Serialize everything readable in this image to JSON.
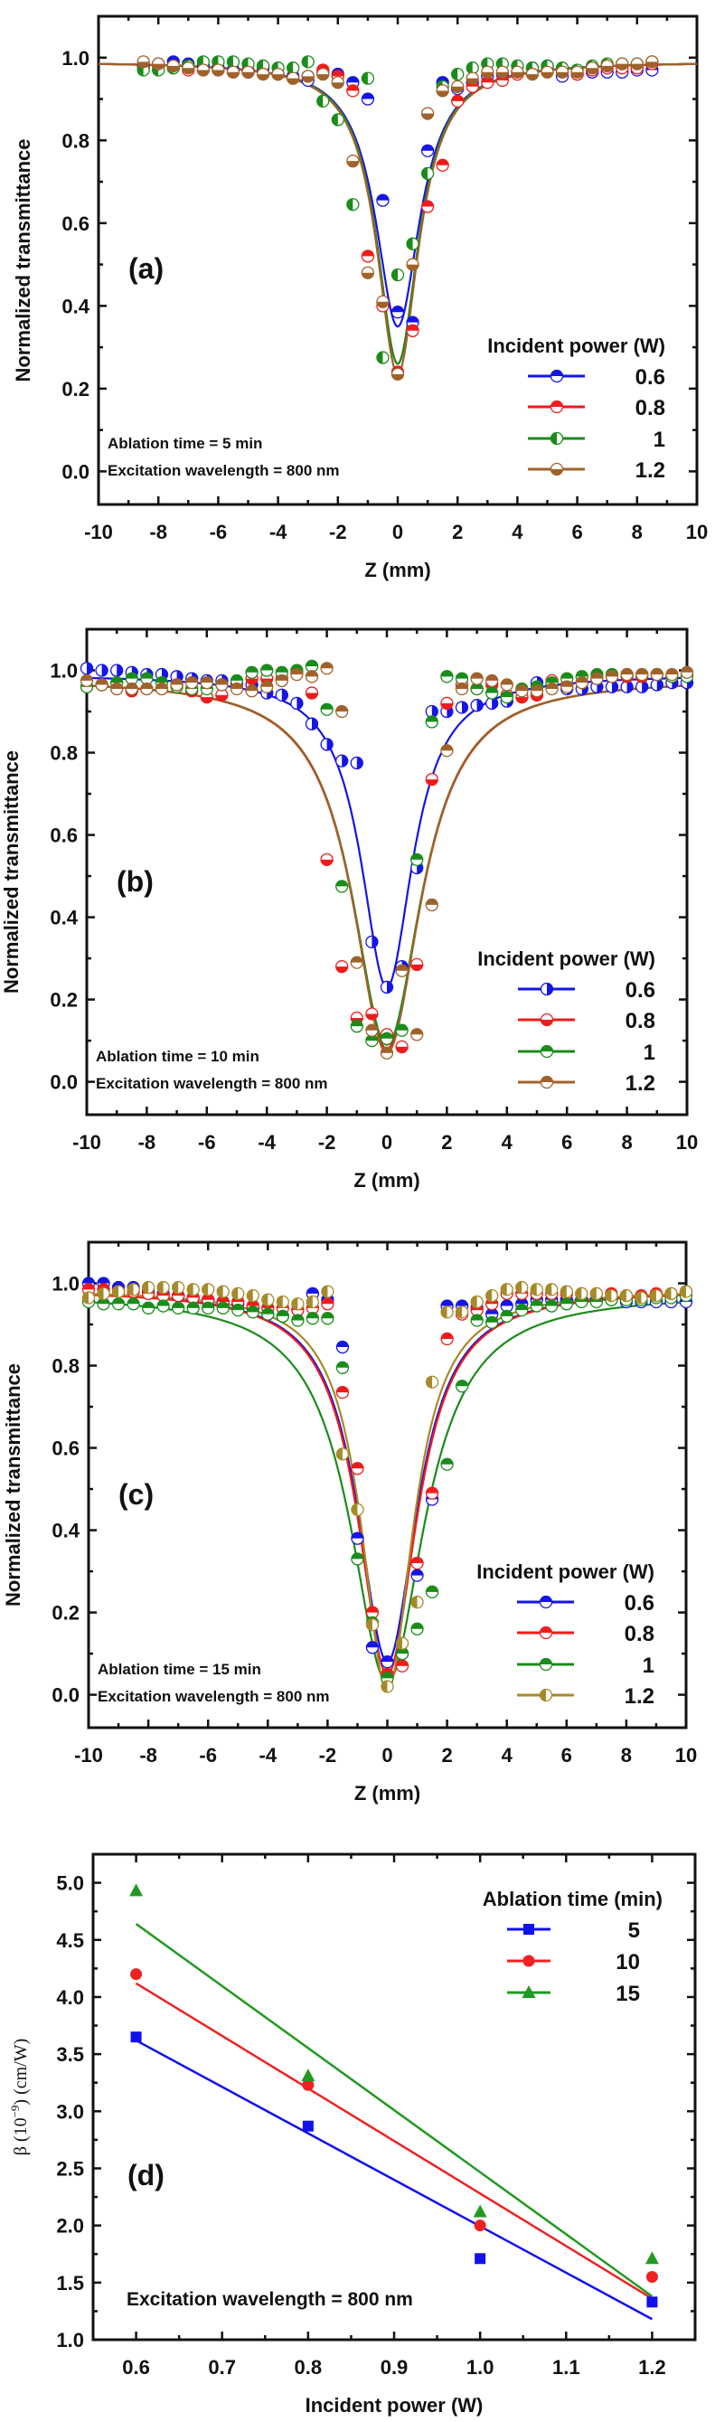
{
  "chart_data": [
    {
      "type": "scatter",
      "panel_label": "(a)",
      "xlabel": "Z (mm)",
      "ylabel": "Normalized transmittance",
      "xlim": [
        -10,
        10
      ],
      "ylim": [
        -0.08,
        1.1
      ],
      "xticks": [
        "-10",
        "-8",
        "-6",
        "-4",
        "-2",
        "0",
        "2",
        "4",
        "6",
        "8",
        "10"
      ],
      "yticks": [
        "0.0",
        "0.2",
        "0.4",
        "0.6",
        "0.8",
        "1.0"
      ],
      "annotations": [
        "Ablation time = 5 min",
        "Excitation wavelength = 800 nm"
      ],
      "legend_title": "Incident power (W)",
      "legend_position": "bottom-right",
      "x": [
        -8.5,
        -8,
        -7.5,
        -7,
        -6.5,
        -6,
        -5.5,
        -5,
        -4.5,
        -4,
        -3.5,
        -3,
        -2.5,
        -2,
        -1.5,
        -1,
        -0.5,
        0,
        0.5,
        1,
        1.5,
        2,
        2.5,
        3,
        3.5,
        4,
        4.5,
        5,
        5.5,
        6,
        6.5,
        7,
        7.5,
        8,
        8.5
      ],
      "series": [
        {
          "name": "0.6",
          "color": "#1515e6",
          "marker_fill": "top",
          "fit": {
            "baseline": 0.99,
            "min": 0.35,
            "z0": 0.9
          },
          "values": [
            0.98,
            0.985,
            0.99,
            0.985,
            0.98,
            0.975,
            0.97,
            0.965,
            0.975,
            0.96,
            0.955,
            0.945,
            0.965,
            0.96,
            0.94,
            0.9,
            0.655,
            0.385,
            0.36,
            0.775,
            0.94,
            0.925,
            0.94,
            0.955,
            0.96,
            0.965,
            0.975,
            0.98,
            0.955,
            0.96,
            0.965,
            0.965,
            0.965,
            0.97,
            0.97
          ]
        },
        {
          "name": "0.8",
          "color": "#ee1c1c",
          "marker_fill": "top",
          "fit": {
            "baseline": 0.99,
            "min": 0.26,
            "z0": 0.85
          },
          "values": [
            0.975,
            0.98,
            0.975,
            0.97,
            0.97,
            0.97,
            0.965,
            0.97,
            0.98,
            0.96,
            0.95,
            0.955,
            0.97,
            0.955,
            0.92,
            0.52,
            0.4,
            0.24,
            0.34,
            0.64,
            0.74,
            0.895,
            0.93,
            0.94,
            0.945,
            0.96,
            0.975,
            0.97,
            0.97,
            0.96,
            0.97,
            0.975,
            0.975,
            0.975,
            0.985
          ]
        },
        {
          "name": "1",
          "color": "#1a8c1a",
          "marker_fill": "left",
          "fit": {
            "baseline": 0.99,
            "min": 0.26,
            "z0": 0.85
          },
          "values": [
            0.97,
            0.97,
            0.975,
            0.98,
            0.99,
            0.99,
            0.99,
            0.985,
            0.98,
            0.975,
            0.975,
            0.99,
            0.895,
            0.85,
            0.645,
            0.95,
            0.275,
            0.475,
            0.55,
            0.72,
            0.93,
            0.96,
            0.975,
            0.985,
            0.985,
            0.98,
            0.975,
            0.98,
            0.975,
            0.97,
            0.98,
            0.985,
            0.985,
            0.985,
            0.99
          ]
        },
        {
          "name": "1.2",
          "color": "#a0622b",
          "marker_fill": "bottom",
          "fit": {
            "baseline": 0.99,
            "min": 0.235,
            "z0": 0.85
          },
          "values": [
            0.99,
            0.985,
            0.98,
            0.975,
            0.97,
            0.97,
            0.965,
            0.965,
            0.96,
            0.96,
            0.95,
            0.955,
            0.96,
            0.94,
            0.75,
            0.48,
            0.41,
            0.235,
            0.5,
            0.865,
            0.92,
            0.93,
            0.95,
            0.965,
            0.965,
            0.965,
            0.96,
            0.965,
            0.965,
            0.965,
            0.975,
            0.98,
            0.985,
            0.985,
            0.99
          ]
        }
      ]
    },
    {
      "type": "scatter",
      "panel_label": "(b)",
      "xlabel": "Z (mm)",
      "ylabel": "Normalized transmittance",
      "xlim": [
        -10,
        10
      ],
      "ylim": [
        -0.08,
        1.1
      ],
      "xticks": [
        "-10",
        "-8",
        "-6",
        "-4",
        "-2",
        "0",
        "2",
        "4",
        "6",
        "8",
        "10"
      ],
      "yticks": [
        "0.0",
        "0.2",
        "0.4",
        "0.6",
        "0.8",
        "1.0"
      ],
      "annotations": [
        "Ablation time = 10 min",
        "Excitation wavelength = 800 nm"
      ],
      "legend_title": "Incident power (W)",
      "legend_position": "bottom-right",
      "x": [
        -10,
        -9.5,
        -9,
        -8.5,
        -8,
        -7.5,
        -7,
        -6.5,
        -6,
        -5.5,
        -5,
        -4.5,
        -4,
        -3.5,
        -3,
        -2.5,
        -2,
        -1.5,
        -1,
        -0.5,
        0,
        0.5,
        1,
        1.5,
        2,
        2.5,
        3,
        3.5,
        4,
        4.5,
        5,
        5.5,
        6,
        6.5,
        7,
        7.5,
        8,
        8.5,
        9,
        9.5,
        10
      ],
      "series": [
        {
          "name": "0.6",
          "color": "#1515e6",
          "marker_fill": "right",
          "fit": {
            "baseline": 0.99,
            "min": 0.23,
            "z0": 1.05
          },
          "values": [
            1.005,
            1.0,
            1.0,
            0.995,
            0.99,
            0.99,
            0.985,
            0.98,
            0.975,
            0.975,
            0.965,
            0.965,
            0.945,
            0.94,
            0.92,
            0.87,
            0.82,
            0.78,
            0.775,
            0.34,
            0.23,
            0.28,
            0.52,
            0.9,
            0.9,
            0.91,
            0.915,
            0.92,
            0.925,
            0.95,
            0.97,
            0.965,
            0.955,
            0.955,
            0.96,
            0.96,
            0.96,
            0.96,
            0.965,
            0.97,
            0.97
          ]
        },
        {
          "name": "0.8",
          "color": "#ee1c1c",
          "marker_fill": "bottom",
          "fit": {
            "baseline": 0.98,
            "min": 0.08,
            "z0": 1.4
          },
          "values": [
            0.96,
            0.965,
            0.955,
            0.95,
            0.955,
            0.955,
            0.965,
            0.95,
            0.935,
            0.94,
            0.96,
            0.98,
            0.98,
            0.98,
            0.995,
            0.945,
            0.54,
            0.28,
            0.155,
            0.165,
            0.115,
            0.085,
            0.285,
            0.735,
            0.92,
            0.965,
            0.955,
            0.965,
            0.94,
            0.935,
            0.94,
            0.975,
            0.965,
            0.97,
            0.98,
            0.985,
            0.985,
            0.985,
            0.99,
            0.985,
            0.99
          ]
        },
        {
          "name": "1",
          "color": "#1a8c1a",
          "marker_fill": "top",
          "fit": {
            "baseline": 0.98,
            "min": 0.09,
            "z0": 1.4
          },
          "values": [
            0.96,
            0.965,
            0.97,
            0.98,
            0.98,
            0.97,
            0.96,
            0.955,
            0.955,
            0.965,
            0.975,
            0.995,
            1.0,
            0.995,
            1.0,
            1.01,
            0.905,
            0.475,
            0.135,
            0.1,
            0.105,
            0.125,
            0.54,
            0.875,
            0.985,
            0.98,
            0.955,
            0.945,
            0.935,
            0.955,
            0.96,
            0.97,
            0.98,
            0.985,
            0.99,
            0.99,
            0.99,
            0.99,
            0.99,
            0.985,
            0.985
          ]
        },
        {
          "name": "1.2",
          "color": "#a0622b",
          "marker_fill": "top",
          "fit": {
            "baseline": 0.98,
            "min": 0.07,
            "z0": 1.38
          },
          "values": [
            0.975,
            0.965,
            0.955,
            0.955,
            0.955,
            0.955,
            0.965,
            0.97,
            0.97,
            0.965,
            0.955,
            0.95,
            0.96,
            0.975,
            0.99,
            0.985,
            1.005,
            0.9,
            0.29,
            0.125,
            0.07,
            0.27,
            0.115,
            0.43,
            0.805,
            0.955,
            0.98,
            0.975,
            0.965,
            0.95,
            0.95,
            0.955,
            0.96,
            0.97,
            0.98,
            0.985,
            0.99,
            0.99,
            0.99,
            0.99,
            0.995
          ]
        }
      ]
    },
    {
      "type": "scatter",
      "panel_label": "(c)",
      "xlabel": "Z (mm)",
      "ylabel": "Normalized transmittance",
      "xlim": [
        -10,
        10
      ],
      "ylim": [
        -0.08,
        1.1
      ],
      "xticks": [
        "-10",
        "-8",
        "-6",
        "-4",
        "-2",
        "0",
        "2",
        "4",
        "6",
        "8",
        "10"
      ],
      "yticks": [
        "0.0",
        "0.2",
        "0.4",
        "0.6",
        "0.8",
        "1.0"
      ],
      "annotations": [
        "Ablation time = 15 min",
        "Excitation wavelength = 800 nm"
      ],
      "legend_title": "Incident power (W)",
      "legend_position": "bottom-right",
      "x": [
        -10,
        -9.5,
        -9,
        -8.5,
        -8,
        -7.5,
        -7,
        -6.5,
        -6,
        -5.5,
        -5,
        -4.5,
        -4,
        -3.5,
        -3,
        -2.5,
        -2,
        -1.5,
        -1,
        -0.5,
        0,
        0.5,
        1,
        1.5,
        2,
        2.5,
        3,
        3.5,
        4,
        4.5,
        5,
        5.5,
        6,
        6.5,
        7,
        7.5,
        8,
        8.5,
        9,
        9.5,
        10
      ],
      "series": [
        {
          "name": "0.6",
          "color": "#1515e6",
          "marker_fill": "top",
          "fit": {
            "baseline": 0.985,
            "min": 0.08,
            "z0": 1.2
          },
          "values": [
            1.0,
            1.0,
            0.99,
            0.99,
            0.98,
            0.975,
            0.97,
            0.965,
            0.96,
            0.955,
            0.95,
            0.94,
            0.925,
            0.92,
            0.935,
            0.975,
            0.96,
            0.845,
            0.38,
            0.115,
            0.08,
            0.1,
            0.29,
            0.475,
            0.945,
            0.945,
            0.94,
            0.925,
            0.945,
            0.95,
            0.96,
            0.96,
            0.96,
            0.96,
            0.96,
            0.96,
            0.955,
            0.955,
            0.955,
            0.955,
            0.955
          ]
        },
        {
          "name": "0.8",
          "color": "#ee1c1c",
          "marker_fill": "top",
          "fit": {
            "baseline": 0.985,
            "min": 0.05,
            "z0": 1.2
          },
          "values": [
            0.985,
            0.985,
            0.98,
            0.98,
            0.975,
            0.97,
            0.97,
            0.965,
            0.96,
            0.955,
            0.955,
            0.945,
            0.94,
            0.94,
            0.935,
            0.94,
            0.95,
            0.735,
            0.55,
            0.2,
            0.05,
            0.07,
            0.32,
            0.49,
            0.865,
            0.925,
            0.935,
            0.95,
            0.975,
            0.975,
            0.975,
            0.975,
            0.975,
            0.975,
            0.975,
            0.975,
            0.97,
            0.97,
            0.975,
            0.975,
            0.98
          ]
        },
        {
          "name": "1",
          "color": "#1a8c1a",
          "marker_fill": "top",
          "fit": {
            "baseline": 0.975,
            "min": 0.03,
            "z0": 1.5
          },
          "values": [
            0.955,
            0.95,
            0.95,
            0.95,
            0.94,
            0.945,
            0.94,
            0.94,
            0.94,
            0.94,
            0.935,
            0.93,
            0.925,
            0.92,
            0.91,
            0.915,
            0.915,
            0.795,
            0.33,
            0.175,
            0.04,
            0.1,
            0.16,
            0.25,
            0.56,
            0.75,
            0.91,
            0.905,
            0.92,
            0.935,
            0.945,
            0.945,
            0.95,
            0.955,
            0.955,
            0.96,
            0.96,
            0.96,
            0.965,
            0.965,
            0.97
          ]
        },
        {
          "name": "1.2",
          "color": "#a68a2a",
          "marker_fill": "left",
          "fit": {
            "baseline": 0.985,
            "min": 0.01,
            "z0": 1.05
          },
          "values": [
            0.965,
            0.975,
            0.98,
            0.985,
            0.99,
            0.99,
            0.99,
            0.985,
            0.985,
            0.98,
            0.975,
            0.97,
            0.96,
            0.955,
            0.95,
            0.955,
            0.98,
            0.585,
            0.45,
            0.17,
            0.02,
            0.125,
            0.225,
            0.76,
            0.93,
            0.93,
            0.955,
            0.97,
            0.985,
            0.99,
            0.985,
            0.985,
            0.98,
            0.975,
            0.975,
            0.97,
            0.97,
            0.965,
            0.97,
            0.975,
            0.98
          ]
        }
      ]
    },
    {
      "type": "scatter",
      "panel_label": "(d)",
      "xlabel": "Incident power (W)",
      "ylabel_prefix": "β (10",
      "ylabel_exp": "−9",
      "ylabel_suffix": ") (cm/W)",
      "xlim": [
        0.55,
        1.25
      ],
      "ylim": [
        1.0,
        5.25
      ],
      "xticks": [
        "0.6",
        "0.7",
        "0.8",
        "0.9",
        "1.0",
        "1.1",
        "1.2"
      ],
      "yticks": [
        "1.0",
        "1.5",
        "2.0",
        "2.5",
        "3.0",
        "3.5",
        "4.0",
        "4.5",
        "5.0"
      ],
      "annotations": [
        "Excitation wavelength = 800 nm"
      ],
      "legend_title": "Ablation time (min)",
      "legend_position": "top-right",
      "x": [
        0.6,
        0.8,
        1.0,
        1.2
      ],
      "series": [
        {
          "name": "5",
          "color": "#1111ee",
          "marker": "square",
          "values": [
            3.65,
            2.87,
            1.71,
            1.33
          ],
          "fit_line": [
            3.62,
            1.18
          ]
        },
        {
          "name": "10",
          "color": "#ee2222",
          "marker": "circle",
          "values": [
            4.2,
            3.23,
            2.0,
            1.55
          ],
          "fit_line": [
            4.12,
            1.36
          ]
        },
        {
          "name": "15",
          "color": "#229922",
          "marker": "triangle",
          "values": [
            4.93,
            3.31,
            2.12,
            1.71
          ],
          "fit_line": [
            4.64,
            1.38
          ]
        }
      ]
    }
  ]
}
